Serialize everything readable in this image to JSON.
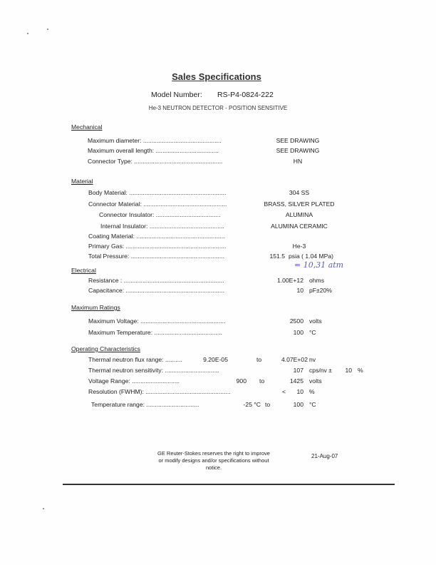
{
  "title": "Sales Specifications",
  "model_label": "Model Number:",
  "model_number": "RS-P4-0824-222",
  "subtitle": "He-3 NEUTRON DETECTOR - POSITION SENSITIVE",
  "mechanical": {
    "heading": "Mechanical",
    "rows": [
      {
        "label": "Maximum diameter: ..............................................",
        "value": "SEE DRAWING"
      },
      {
        "label": "Maximum overall length: .....................................",
        "value": "SEE DRAWING"
      },
      {
        "label": "Connector Type: ....................................................",
        "value": "HN"
      }
    ]
  },
  "material": {
    "heading": "Material",
    "rows": [
      {
        "label": "Body Material: .........................................................",
        "value": "304 SS"
      },
      {
        "label": "Connector Material: .................................................",
        "value": "BRASS, SILVER PLATED"
      },
      {
        "label": "Connector Insulator: ......................................",
        "value": "ALUMINA"
      },
      {
        "label": "Internal Insulator: ............................................",
        "value": "ALUMINA CERAMIC"
      },
      {
        "label": "Coating Material: ....................................................",
        "value": ""
      },
      {
        "label": "Primary Gas: ...........................................................",
        "value": "He-3"
      },
      {
        "label": "Total Pressure: .......................................................",
        "value": "151.5",
        "unit": "psia (   1.04  MPa)"
      }
    ],
    "handwritten_note": "= 10,31 atm"
  },
  "electrical": {
    "heading": "Electrical",
    "rows": [
      {
        "label": "Resistance : ...........................................................",
        "value": "1.00E+12",
        "unit": "ohms"
      },
      {
        "label": "Capacitance: ..........................................................",
        "value": "10",
        "unit": "pF±20%"
      }
    ]
  },
  "ratings": {
    "heading": "Maximum Ratings",
    "rows": [
      {
        "label": "Maximum Voltage: ..................................................",
        "value": "2500",
        "unit": "volts"
      },
      {
        "label": "Maximum Temperature: ........................................",
        "value": "100",
        "unit": "°C"
      }
    ]
  },
  "operating": {
    "heading": "Operating Characteristics",
    "flux": {
      "label": "Thermal neutron flux range: ..........",
      "min": "9.20E-05",
      "to": "to",
      "max": "4.07E+02",
      "unit": "nv"
    },
    "sensitivity": {
      "label": "Thermal neutron sensitivity: ................................",
      "value": "107",
      "unit": "cps/nv ±",
      "tol": "10",
      "tol_unit": "%"
    },
    "voltage": {
      "label": "Voltage Range: ............................",
      "min": "900",
      "to": "to",
      "max": "1425",
      "unit": "volts"
    },
    "resolution": {
      "label": "Resolution (FWHM): ..................................................",
      "prefix": "<",
      "value": "10",
      "unit": "%"
    },
    "temperature": {
      "label": "Temperature range: ...............................",
      "min": "-25 °C",
      "to": "to",
      "max": "100",
      "unit": "°C"
    }
  },
  "footer": {
    "notice": "GE Reuter-Stokes reserves the right to improve or modify designs and/or specifications without notice.",
    "date": "21-Aug-07"
  }
}
